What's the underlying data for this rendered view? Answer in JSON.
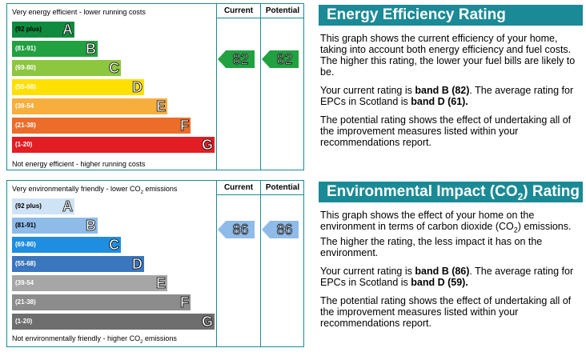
{
  "energy_chart": {
    "top_label": "Very energy efficient - lower running costs",
    "bottom_label": "Not energy efficient - higher running costs",
    "current_header": "Current",
    "potential_header": "Potential",
    "current_value": "82",
    "potential_value": "82",
    "bands": [
      {
        "range": "(92 plus)",
        "letter": "A",
        "color": "#108a3e"
      },
      {
        "range": "(81-91)",
        "letter": "B",
        "color": "#21a140"
      },
      {
        "range": "(69-80)",
        "letter": "C",
        "color": "#8dc63f"
      },
      {
        "range": "(55-68)",
        "letter": "D",
        "color": "#ffe000"
      },
      {
        "range": "(39-54",
        "letter": "E",
        "color": "#f8ae3d"
      },
      {
        "range": "(21-38)",
        "letter": "F",
        "color": "#ec6c2a"
      },
      {
        "range": "(1-20)",
        "letter": "G",
        "color": "#e31d24"
      }
    ],
    "arrow_color": "#21a140"
  },
  "env_chart": {
    "top_label_a": "Very environmentally friendly - lower CO",
    "top_label_sub": "2",
    "top_label_b": " emissions",
    "bottom_label_a": "Not environmentally friendly - higher CO",
    "bottom_label_sub": "2",
    "bottom_label_b": " emissions",
    "current_header": "Current",
    "potential_header": "Potential",
    "current_value": "86",
    "potential_value": "86",
    "bands": [
      {
        "range": "(92 plus)",
        "letter": "A",
        "color": "#cfe3f5"
      },
      {
        "range": "(81-91)",
        "letter": "B",
        "color": "#8fbbe9"
      },
      {
        "range": "(69-80)",
        "letter": "C",
        "color": "#1f8ee0"
      },
      {
        "range": "(55-68)",
        "letter": "D",
        "color": "#3a76bd"
      },
      {
        "range": "(39-54",
        "letter": "E",
        "color": "#a6a6a6"
      },
      {
        "range": "(21-38)",
        "letter": "F",
        "color": "#8c8c8c"
      },
      {
        "range": "(1-20)",
        "letter": "G",
        "color": "#6e6e6e"
      }
    ],
    "arrow_color": "#8fbbe9"
  },
  "energy_panel": {
    "title": "Energy Efficiency Rating",
    "para1": "This graph shows the current efficiency of your home, taking into account both energy efficiency and fuel costs. The higher this rating, the lower your fuel bills are likely to be.",
    "para2_a": "Your current rating is ",
    "para2_b": "band B (82)",
    "para2_c": ". The average rating for EPCs in Scotland is ",
    "para2_d": "band D (61).",
    "para3": "The potential rating shows the effect of undertaking all of the improvement measures listed within your recommendations report."
  },
  "env_panel": {
    "title_a": "Environmental Impact (CO",
    "title_sub": "2",
    "title_b": ") Rating",
    "para1_a": "This graph shows the effect of your home on the environment in terms of carbon dioxide (CO",
    "para1_sub": "2",
    "para1_b": ") emissions. The higher the rating, the less impact it has on the environment.",
    "para2_a": "Your current rating is ",
    "para2_b": "band B (86)",
    "para2_c": ". The average rating for EPCs in Scotland is ",
    "para2_d": "band D (59).",
    "para3": "The potential rating shows the effect of undertaking all of the improvement measures listed within your recommendations report."
  }
}
